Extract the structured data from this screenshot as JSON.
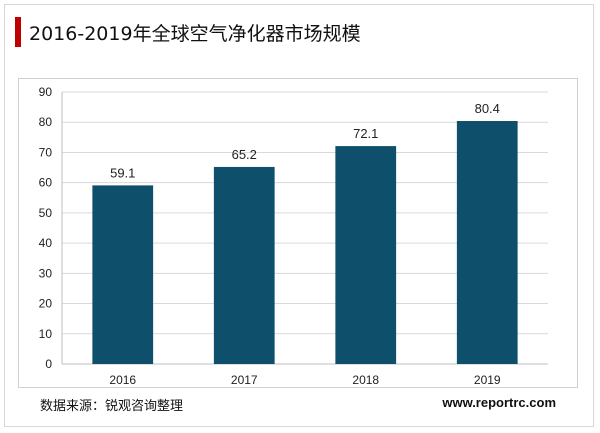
{
  "title": "2016-2019年全球空气净化器市场规模",
  "source": "数据来源：锐观咨询整理",
  "website": "www.reportrc.com",
  "colors": {
    "accent_bar": "#c00000",
    "bar": "#0e4f6b",
    "grid": "#d9d9d9"
  },
  "chart_data": {
    "type": "bar",
    "categories": [
      "2016",
      "2017",
      "2018",
      "2019"
    ],
    "values": [
      59.1,
      65.2,
      72.1,
      80.4
    ],
    "data_labels": [
      "59.1",
      "65.2",
      "72.1",
      "80.4"
    ],
    "ylim": [
      0,
      90
    ],
    "yticks": [
      0,
      10,
      20,
      30,
      40,
      50,
      60,
      70,
      80,
      90
    ],
    "grid": true,
    "title": "",
    "xlabel": "",
    "ylabel": ""
  }
}
